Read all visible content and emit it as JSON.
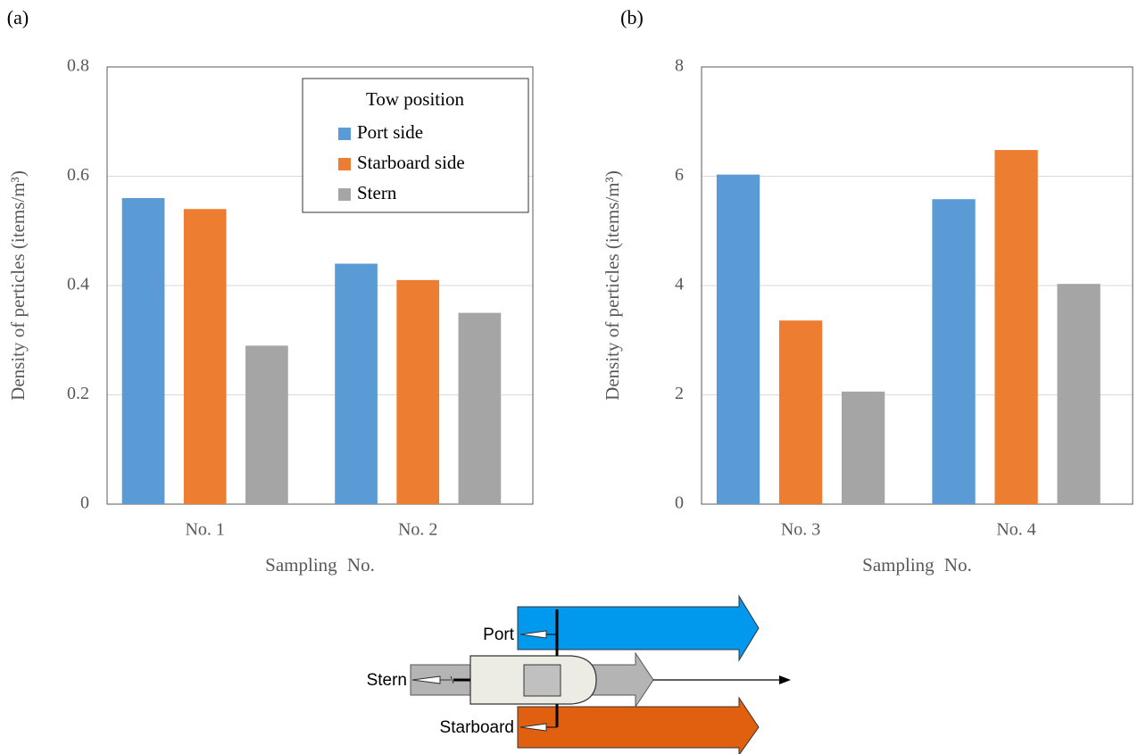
{
  "chart_data": [
    {
      "type": "bar",
      "label": "(a)",
      "ylabel": "Density of perticles (items/m³)",
      "xlabel": "Sampling No.",
      "categories": [
        "No. 1",
        "No. 2"
      ],
      "series": [
        {
          "name": "Port side",
          "color": "#5b9bd5",
          "values": [
            0.56,
            0.44
          ]
        },
        {
          "name": "Starboard side",
          "color": "#ed7d31",
          "values": [
            0.54,
            0.41
          ]
        },
        {
          "name": "Stern",
          "color": "#a5a5a5",
          "values": [
            0.29,
            0.35
          ]
        }
      ],
      "ylim": [
        0,
        0.8
      ],
      "yticks": [
        0,
        0.2,
        0.4,
        0.6,
        0.8
      ],
      "grid": true,
      "legend": "upper right",
      "legend_title": "Tow position"
    },
    {
      "type": "bar",
      "label": "(b)",
      "ylabel": "Density of perticles (items/m³)",
      "xlabel": "Sampling No.",
      "categories": [
        "No. 3",
        "No. 4"
      ],
      "series": [
        {
          "name": "Port side",
          "color": "#5b9bd5",
          "values": [
            6.03,
            5.58
          ]
        },
        {
          "name": "Starboard side",
          "color": "#ed7d31",
          "values": [
            3.36,
            6.48
          ]
        },
        {
          "name": "Stern",
          "color": "#a5a5a5",
          "values": [
            2.06,
            4.03
          ]
        }
      ],
      "ylim": [
        0,
        8
      ],
      "yticks": [
        0,
        2,
        4,
        6,
        8
      ],
      "grid": true
    }
  ],
  "diagram": {
    "labels": [
      "Port",
      "Stern",
      "Starboard"
    ]
  }
}
